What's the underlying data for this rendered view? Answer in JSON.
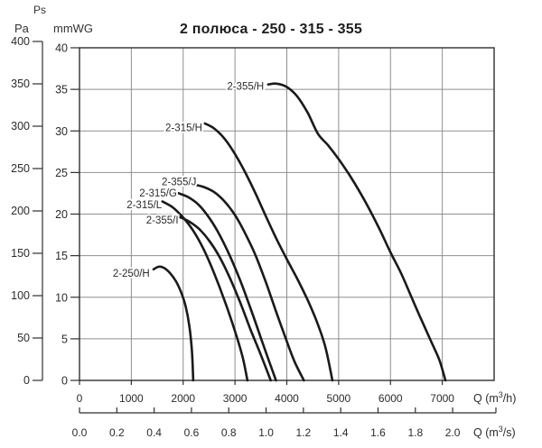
{
  "header": {
    "ps": "Ps",
    "pa": "Pa",
    "mmwg": "mmWG"
  },
  "chart_data": {
    "type": "line",
    "title": "2 полюса - 250 - 315 - 355",
    "grid": true,
    "x_axis_h": {
      "unit": {
        "pre": "Q (m",
        "sup": "3",
        "post": "/h)"
      },
      "ticks": [
        0,
        1000,
        2000,
        3000,
        4000,
        5000,
        6000,
        7000
      ],
      "range": [
        0,
        8000
      ]
    },
    "x_axis_s": {
      "unit": {
        "pre": "Q (m",
        "sup": "3",
        "post": "/s)"
      },
      "tick_labels": [
        "0.0",
        "0.2",
        "0.4",
        "0.6",
        "0.8",
        "1.0",
        "1.2",
        "1.4",
        "1.6",
        "1.8",
        "2.0"
      ],
      "tick_values": [
        0,
        0.2,
        0.4,
        0.6,
        0.8,
        1.0,
        1.2,
        1.4,
        1.6,
        1.8,
        2.0
      ],
      "h_per_s": 3600
    },
    "y_axis_pa": {
      "label": "Pa",
      "ticks": [
        400,
        350,
        300,
        250,
        200,
        150,
        100,
        50,
        0
      ],
      "range": [
        0,
        400
      ]
    },
    "y_axis_mmwg": {
      "label": "mmWG",
      "ticks": [
        40,
        35,
        30,
        25,
        20,
        15,
        10,
        5,
        0
      ],
      "range": [
        0,
        40
      ],
      "pa_per_mmwg": 9.807
    },
    "series": [
      {
        "name": "2-250/H",
        "label_at": [
          1355,
          122
        ],
        "points": [
          [
            1430,
            131
          ],
          [
            1520,
            134
          ],
          [
            1620,
            133
          ],
          [
            1740,
            127
          ],
          [
            1860,
            117
          ],
          [
            1960,
            104
          ],
          [
            2050,
            87
          ],
          [
            2120,
            64
          ],
          [
            2170,
            34
          ],
          [
            2195,
            0
          ]
        ]
      },
      {
        "name": "2-315/L",
        "label_at": [
          1590,
          203
        ],
        "points": [
          [
            1600,
            211
          ],
          [
            1800,
            204
          ],
          [
            2000,
            192
          ],
          [
            2200,
            176
          ],
          [
            2400,
            154
          ],
          [
            2600,
            126
          ],
          [
            2800,
            94
          ],
          [
            3000,
            58
          ],
          [
            3150,
            27
          ],
          [
            3240,
            0
          ]
        ]
      },
      {
        "name": "2-355/I",
        "label_at": [
          1910,
          185
        ],
        "points": [
          [
            1915,
            193
          ],
          [
            2100,
            188
          ],
          [
            2300,
            179
          ],
          [
            2500,
            165
          ],
          [
            2700,
            146
          ],
          [
            2900,
            121
          ],
          [
            3100,
            92
          ],
          [
            3300,
            60
          ],
          [
            3500,
            30
          ],
          [
            3690,
            0
          ]
        ]
      },
      {
        "name": "2-315/G",
        "label_at": [
          1880,
          217
        ],
        "points": [
          [
            1900,
            221
          ],
          [
            2100,
            216
          ],
          [
            2300,
            207
          ],
          [
            2500,
            192
          ],
          [
            2700,
            172
          ],
          [
            2900,
            147
          ],
          [
            3100,
            118
          ],
          [
            3300,
            85
          ],
          [
            3500,
            50
          ],
          [
            3650,
            24
          ],
          [
            3790,
            0
          ]
        ]
      },
      {
        "name": "2-355/J",
        "label_at": [
          2255,
          230
        ],
        "points": [
          [
            2210,
            231
          ],
          [
            2400,
            228
          ],
          [
            2600,
            222
          ],
          [
            2800,
            211
          ],
          [
            3000,
            195
          ],
          [
            3200,
            173
          ],
          [
            3400,
            147
          ],
          [
            3600,
            115
          ],
          [
            3800,
            80
          ],
          [
            4000,
            46
          ],
          [
            4150,
            22
          ],
          [
            4330,
            0
          ]
        ]
      },
      {
        "name": "2-315/H",
        "label_at": [
          2370,
          294
        ],
        "points": [
          [
            2420,
            303
          ],
          [
            2600,
            297
          ],
          [
            2800,
            285
          ],
          [
            3000,
            267
          ],
          [
            3200,
            245
          ],
          [
            3400,
            220
          ],
          [
            3600,
            193
          ],
          [
            3800,
            167
          ],
          [
            4000,
            143
          ],
          [
            4200,
            120
          ],
          [
            4400,
            95
          ],
          [
            4600,
            66
          ],
          [
            4750,
            38
          ],
          [
            4880,
            0
          ]
        ]
      },
      {
        "name": "2-355/H",
        "label_at": [
          3560,
          343
        ],
        "points": [
          [
            3640,
            349
          ],
          [
            3800,
            350
          ],
          [
            4000,
            346
          ],
          [
            4200,
            335
          ],
          [
            4400,
            316
          ],
          [
            4600,
            291
          ],
          [
            4800,
            277
          ],
          [
            5000,
            261
          ],
          [
            5200,
            243
          ],
          [
            5400,
            223
          ],
          [
            5600,
            201
          ],
          [
            5800,
            177
          ],
          [
            6000,
            151
          ],
          [
            6200,
            127
          ],
          [
            6400,
            99
          ],
          [
            6600,
            71
          ],
          [
            6800,
            44
          ],
          [
            6950,
            23
          ],
          [
            7060,
            0
          ]
        ]
      }
    ],
    "colors": {
      "curve": "#1a1a1a",
      "grid": "#8f8f8f",
      "border": "#2f2f2f",
      "text": "#2b2b2b"
    }
  }
}
